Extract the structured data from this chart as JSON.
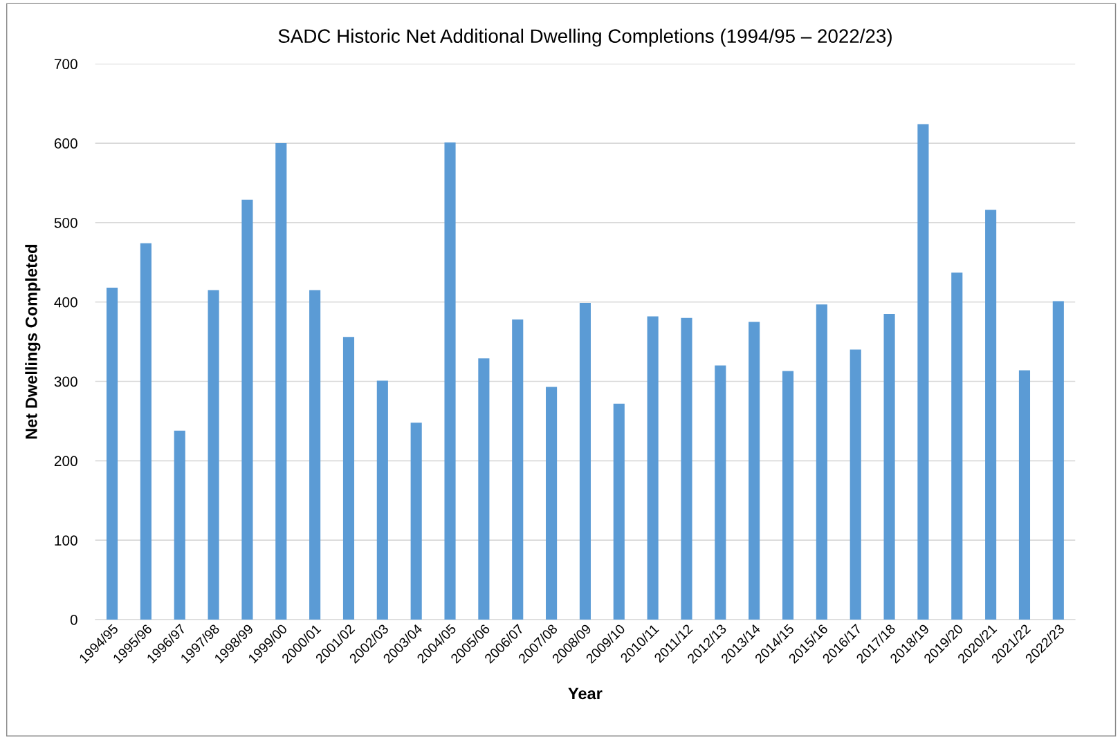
{
  "chart_data": {
    "type": "bar",
    "title": "SADC Historic Net Additional Dwelling Completions (1994/95 – 2022/23)",
    "xlabel": "Year",
    "ylabel": "Net Dwellings Completed",
    "categories": [
      "1994/95",
      "1995/96",
      "1996/97",
      "1997/98",
      "1998/99",
      "1999/00",
      "2000/01",
      "2001/02",
      "2002/03",
      "2003/04",
      "2004/05",
      "2005/06",
      "2006/07",
      "2007/08",
      "2008/09",
      "2009/10",
      "2010/11",
      "2011/12",
      "2012/13",
      "2013/14",
      "2014/15",
      "2015/16",
      "2016/17",
      "2017/18",
      "2018/19",
      "2019/20",
      "2020/21",
      "2021/22",
      "2022/23"
    ],
    "values": [
      418,
      474,
      238,
      415,
      529,
      600,
      415,
      356,
      301,
      248,
      601,
      329,
      378,
      293,
      399,
      272,
      382,
      380,
      320,
      375,
      313,
      397,
      340,
      385,
      624,
      437,
      516,
      314,
      401
    ],
    "color": "#5b9bd5",
    "ylim": [
      0,
      700
    ],
    "yticks": [
      0,
      100,
      200,
      300,
      400,
      500,
      600,
      700
    ],
    "grid": "y",
    "legend": false
  }
}
